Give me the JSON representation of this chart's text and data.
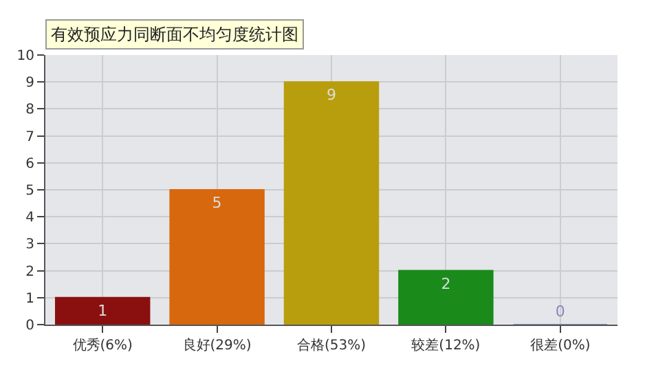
{
  "chart_data": {
    "type": "bar",
    "title": "有效预应力同断面不均匀度统计图",
    "categories": [
      "优秀(6%)",
      "良好(29%)",
      "合格(53%)",
      "较差(12%)",
      "很差(0%)"
    ],
    "values": [
      1,
      5,
      9,
      2,
      0
    ],
    "colors": [
      "#8a1010",
      "#d8680e",
      "#b89e0c",
      "#1a8a1a",
      "#8888bb"
    ],
    "ylim": [
      0,
      10
    ],
    "yticks": [
      0,
      1,
      2,
      3,
      4,
      5,
      6,
      7,
      8,
      9,
      10
    ],
    "grid": true,
    "data_labels": true
  }
}
